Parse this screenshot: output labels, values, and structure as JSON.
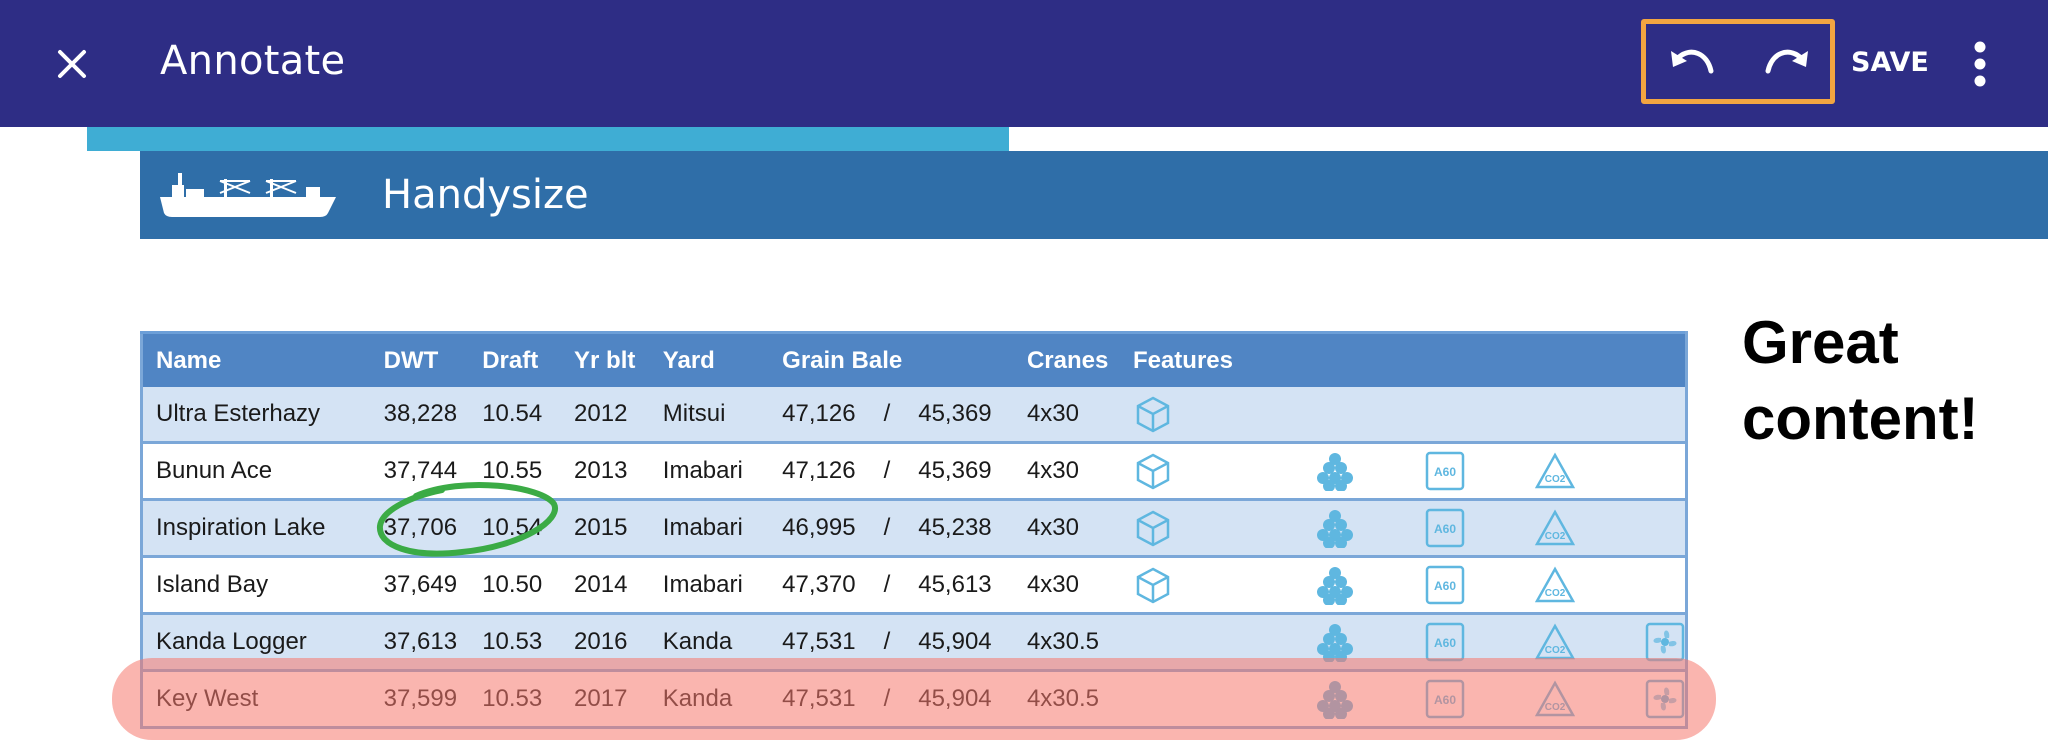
{
  "appbar": {
    "title": "Annotate",
    "save_label": "SAVE",
    "bg_color": "#2e2d85",
    "highlight_color": "#f2a541"
  },
  "progress": {
    "fraction": 0.47,
    "color": "#3fadd4"
  },
  "section": {
    "title": "Handysize"
  },
  "annotation": {
    "line1": "Great",
    "line2": "content!"
  },
  "table": {
    "headers": {
      "name": "Name",
      "dwt": "DWT",
      "draft": "Draft",
      "yr": "Yr blt",
      "yard": "Yard",
      "grain": "Grain Bale",
      "cranes": "Cranes",
      "features": "Features"
    },
    "rows": [
      {
        "name": "Ultra Esterhazy",
        "dwt": "38,228",
        "draft": "10.54",
        "yr": "2012",
        "yard": "Mitsui",
        "grain1": "47,126",
        "grain2": "45,369",
        "cranes": "4x30",
        "sep": "/"
      },
      {
        "name": "Bunun Ace",
        "dwt": "37,744",
        "draft": "10.55",
        "yr": "2013",
        "yard": "Imabari",
        "grain1": "47,126",
        "grain2": "45,369",
        "cranes": "4x30",
        "sep": "/"
      },
      {
        "name": "Inspiration Lake",
        "dwt": "37,706",
        "draft": "10.54",
        "yr": "2015",
        "yard": "Imabari",
        "grain1": "46,995",
        "grain2": "45,238",
        "cranes": "4x30",
        "sep": "/"
      },
      {
        "name": "Island Bay",
        "dwt": "37,649",
        "draft": "10.50",
        "yr": "2014",
        "yard": "Imabari",
        "grain1": "47,370",
        "grain2": "45,613",
        "cranes": "4x30",
        "sep": "/"
      },
      {
        "name": "Kanda Logger",
        "dwt": "37,613",
        "draft": "10.53",
        "yr": "2016",
        "yard": "Kanda",
        "grain1": "47,531",
        "grain2": "45,904",
        "cranes": "4x30.5",
        "sep": "/"
      },
      {
        "name": "Key West",
        "dwt": "37,599",
        "draft": "10.53",
        "yr": "2017",
        "yard": "Kanda",
        "grain1": "47,531",
        "grain2": "45,904",
        "cranes": "4x30.5",
        "sep": "/"
      }
    ],
    "feature_icon_names": [
      "box-icon",
      "logs-icon",
      "a60-icon",
      "co2-icon",
      "fan-icon"
    ],
    "a60_label": "A60",
    "co2_label": "CO2"
  },
  "colors": {
    "header_row": "#5085c4",
    "even_row": "#d4e3f4",
    "section_bar": "#2f6ea8",
    "icon_blue": "#5fb7e0"
  }
}
